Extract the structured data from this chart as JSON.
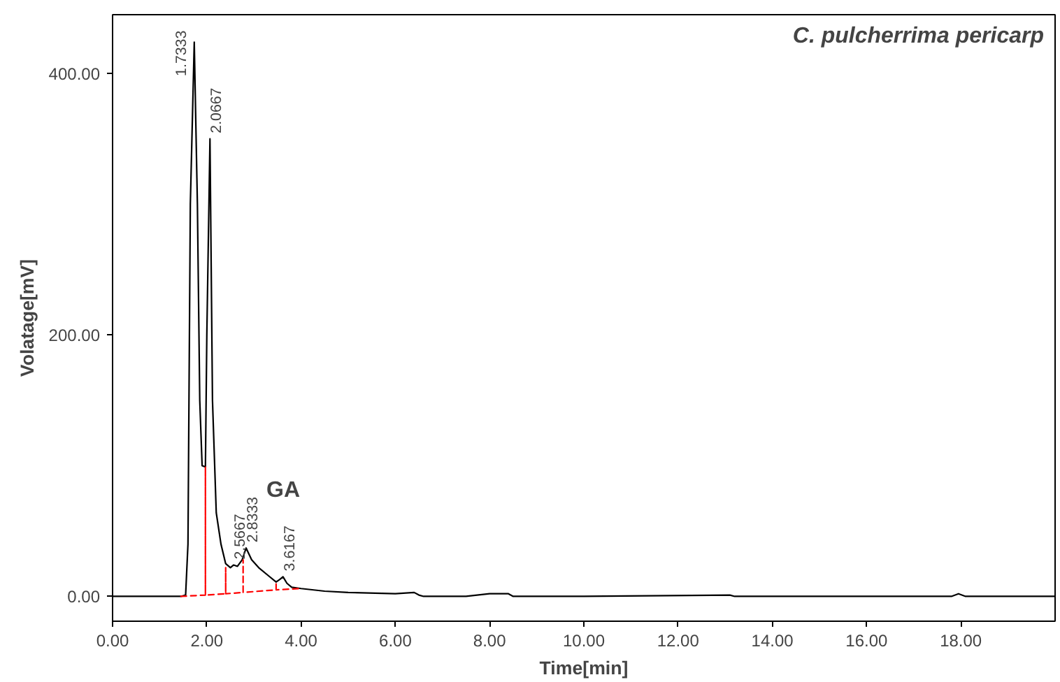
{
  "chart_data": {
    "type": "line",
    "title": "C. pulcherrima pericarp",
    "xlabel": "Time[min]",
    "ylabel": "Volatage[mV]",
    "xlim": [
      0,
      20
    ],
    "ylim": [
      -19,
      445
    ],
    "xticks": [
      {
        "value": 0,
        "label": "0.00"
      },
      {
        "value": 2,
        "label": "2.00"
      },
      {
        "value": 4,
        "label": "4.00"
      },
      {
        "value": 6,
        "label": "6.00"
      },
      {
        "value": 8,
        "label": "8.00"
      },
      {
        "value": 10,
        "label": "10.00"
      },
      {
        "value": 12,
        "label": "12.00"
      },
      {
        "value": 14,
        "label": "14.00"
      },
      {
        "value": 16,
        "label": "16.00"
      },
      {
        "value": 18,
        "label": "18.00"
      }
    ],
    "yticks": [
      {
        "value": 0,
        "label": "0.00"
      },
      {
        "value": 200,
        "label": "200.00"
      },
      {
        "value": 400,
        "label": "400.00"
      }
    ],
    "grid": false,
    "marker": "none",
    "series": [
      {
        "color": "#000000",
        "line_style": "solid",
        "x": [
          0,
          1.45,
          1.55,
          1.6,
          1.65,
          1.7333,
          1.8,
          1.85,
          1.9,
          1.97,
          2.0,
          2.0667,
          2.12,
          2.2,
          2.3,
          2.4,
          2.5,
          2.5667,
          2.65,
          2.75,
          2.8333,
          2.95,
          3.1,
          3.3,
          3.47,
          3.55,
          3.6167,
          3.7,
          3.8,
          4.0,
          4.5,
          5.0,
          6.0,
          6.4,
          6.5,
          6.6,
          7.5,
          8.0,
          8.2,
          8.4,
          8.5,
          10.0,
          13.1,
          13.2,
          17.8,
          17.95,
          18.1,
          20
        ],
        "values": [
          0,
          0,
          1,
          40,
          300,
          424,
          300,
          150,
          100,
          99,
          200,
          350,
          150,
          64,
          40,
          25,
          22,
          24,
          23,
          28,
          37,
          28,
          22,
          16,
          11,
          13,
          15,
          10,
          7,
          6,
          4,
          3,
          2,
          3,
          1,
          0,
          0,
          2,
          2,
          2,
          0,
          0,
          1,
          0,
          0,
          2,
          0,
          0
        ]
      },
      {
        "color": "#ff0000",
        "line_style": "dashed",
        "x": [
          1.45,
          1.97,
          1.97,
          1.97,
          2.4,
          2.4,
          2.4,
          2.77,
          2.77,
          2.77,
          3.47,
          3.47,
          3.47,
          4.0
        ],
        "values": [
          0,
          1,
          99,
          1,
          2,
          22,
          2,
          3,
          28,
          3,
          5,
          10,
          5,
          6
        ]
      }
    ],
    "annotations": [
      {
        "text": "1.7333",
        "x": 1.7333,
        "y": 424
      },
      {
        "text": "2.0667",
        "x": 2.0667,
        "y": 350
      },
      {
        "text": "2.5667",
        "x": 2.5667,
        "y": 24
      },
      {
        "text": "2.8333",
        "x": 2.8333,
        "y": 37
      },
      {
        "text": "3.6167",
        "x": 3.6167,
        "y": 15
      },
      "GA"
    ]
  }
}
